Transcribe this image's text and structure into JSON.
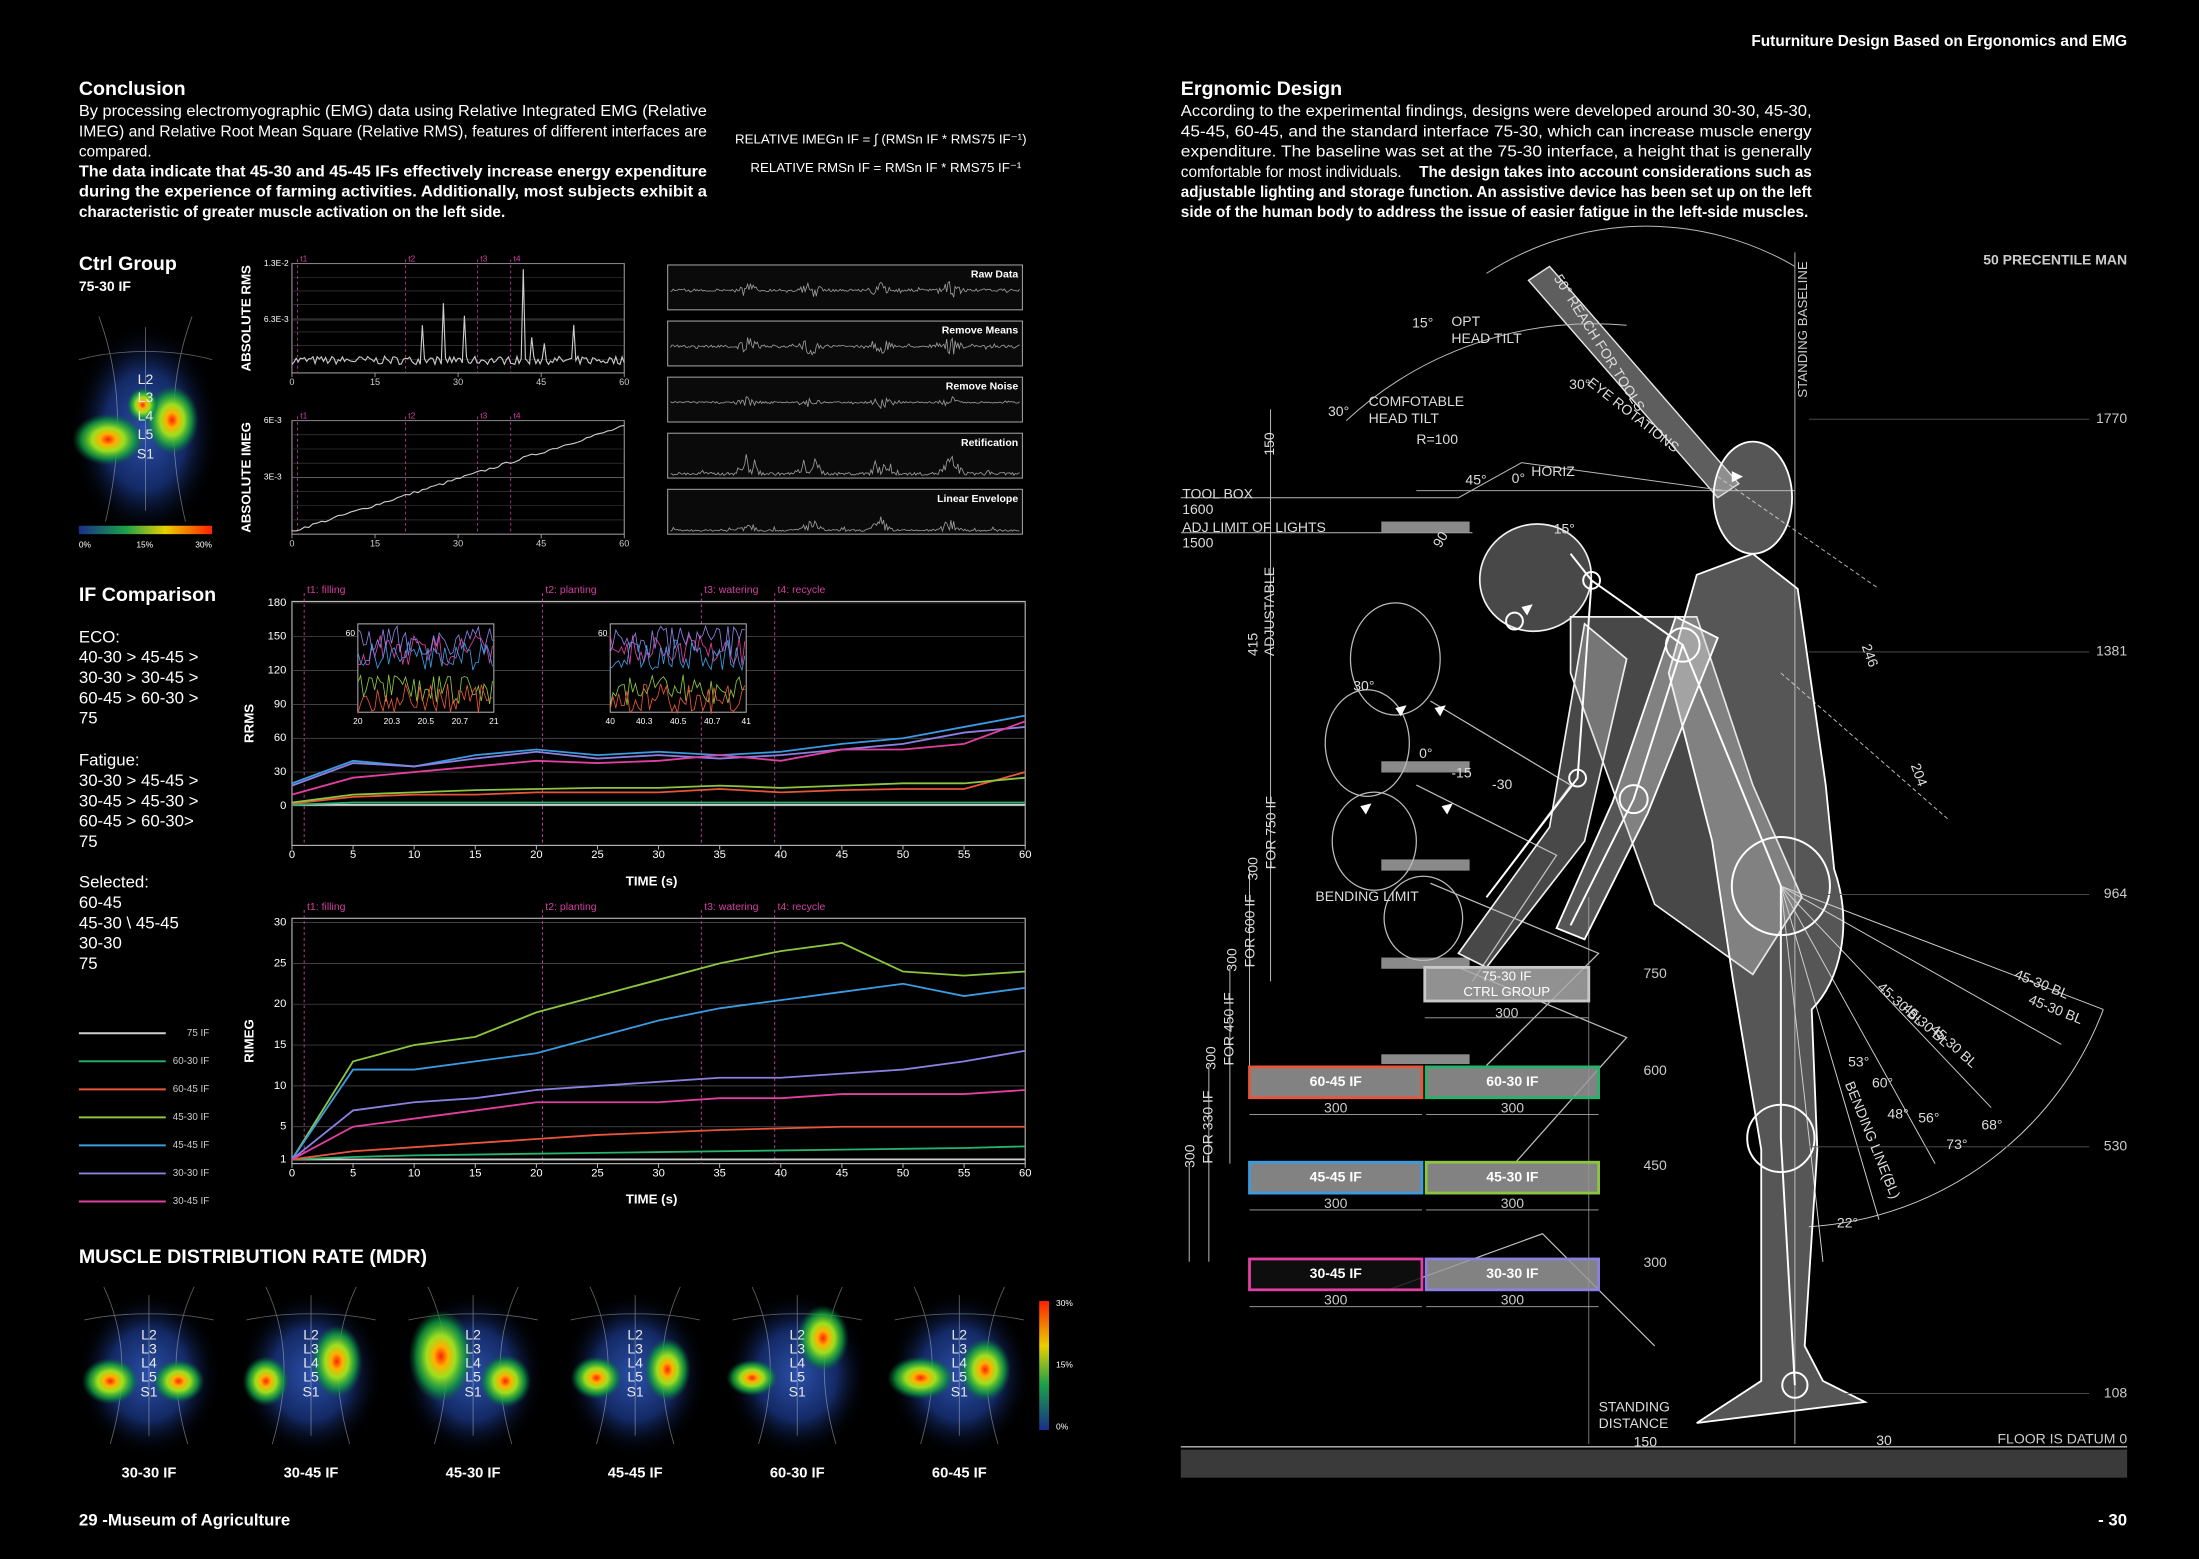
{
  "header": {
    "title": "Futurniture Design Based on Ergonomics and EMG"
  },
  "conclusion": {
    "heading": "Conclusion",
    "body": [
      "By processing electromyographic (EMG) data using Relative Integrated EMG (Relative",
      "IMEG) and Relative Root Mean Square (Relative RMS),  features of different interfaces are",
      "compared."
    ],
    "emphasis": [
      "The data indicate that 45-30 and 45-45 IFs effectively increase energy expenditure",
      "during the experience of farming activities. Additionally, most subjects exhibit a",
      "characteristic of greater muscle activation on the left side."
    ]
  },
  "formula": {
    "imeg": "RELATIVE IMEGn IF = ∫ (RMSn IF * RMS75 IF⁻¹)",
    "rms": "RELATIVE RMSn IF = RMSn IF * RMS75 IF⁻¹"
  },
  "ctrl_group": {
    "heading": "Ctrl Group",
    "subheading": "75-30 IF",
    "spine_labels": [
      "L2",
      "L3",
      "L4",
      "L5",
      "S1"
    ],
    "scale": [
      "0%",
      "15%",
      "30%"
    ],
    "rms_chart": {
      "ylabel": "ABSOLUTE RMS",
      "ylim": [
        0,
        0.013
      ],
      "yticks": [
        {
          "value": 0.013,
          "label": "1.3E-2"
        },
        {
          "value": 0.0063,
          "label": "6.3E-3"
        }
      ],
      "xlim": [
        0,
        60
      ],
      "xticks": [
        0,
        15,
        30,
        45,
        60
      ],
      "phases": [
        "t1",
        "t2",
        "t3",
        "t4"
      ]
    },
    "imeg_chart": {
      "ylabel": "ABSOLUTE IMEG",
      "ylim": [
        0,
        0.006
      ],
      "yticks": [
        {
          "value": 0.006,
          "label": "6E-3"
        },
        {
          "value": 0.003,
          "label": "3E-3"
        }
      ],
      "xlim": [
        0,
        60
      ],
      "xticks": [
        0,
        15,
        30,
        45,
        60
      ],
      "phases": [
        "t1",
        "t2",
        "t3",
        "t4"
      ]
    }
  },
  "signal_steps": [
    "Raw Data",
    "Remove Means",
    "Remove Noise",
    "Retification",
    "Linear Envelope"
  ],
  "if_comparison": {
    "heading": "IF Comparison",
    "groups": [
      {
        "title": "ECO:",
        "lines": [
          "40-30 > 45-45 >",
          "30-30 > 30-45 >",
          "60-45 > 60-30 >",
          "75"
        ]
      },
      {
        "title": "Fatigue:",
        "lines": [
          "30-30 > 45-45 >",
          "30-45 > 45-30 >",
          "60-45 > 60-30>",
          "75"
        ]
      },
      {
        "title": "Selected:",
        "lines": [
          "60-45",
          "45-30 \\ 45-45",
          "30-30",
          "75"
        ]
      }
    ]
  },
  "rrms_chart": {
    "type": "line",
    "ylabel": "RRMS",
    "xlabel": "TIME (s)",
    "phases": [
      "t1: filling",
      "t2: planting",
      "t3: watering",
      "t4: recycle"
    ],
    "x": [
      0,
      5,
      10,
      15,
      20,
      25,
      30,
      35,
      40,
      45,
      50,
      55,
      60
    ],
    "xlim": [
      0,
      60
    ],
    "xticks": [
      0,
      5,
      10,
      15,
      20,
      25,
      30,
      35,
      40,
      45,
      50,
      55,
      60
    ],
    "ylim": [
      -35,
      180
    ],
    "yticks": [
      0,
      30,
      60,
      90,
      120,
      150,
      180
    ],
    "insets": [
      {
        "xticks": [
          20,
          20.3,
          20.5,
          20.7,
          21
        ],
        "ytick": 60
      },
      {
        "xticks": [
          40,
          40.3,
          40.5,
          40.7,
          41
        ],
        "ytick": 60
      }
    ],
    "series": [
      {
        "name": "75 IF",
        "color": "#d0d0d0",
        "values": [
          1,
          1,
          1,
          1,
          1,
          1,
          1,
          1,
          1,
          1,
          1,
          1,
          1
        ]
      },
      {
        "name": "60-30 IF",
        "color": "#27b36b",
        "values": [
          1,
          3,
          3,
          3,
          3,
          3,
          3,
          3,
          3,
          3,
          3,
          3,
          3
        ]
      },
      {
        "name": "60-45 IF",
        "color": "#e8553a",
        "values": [
          2,
          8,
          10,
          10,
          12,
          12,
          12,
          15,
          12,
          14,
          15,
          15,
          30
        ]
      },
      {
        "name": "45-30 IF",
        "color": "#8cc63f",
        "values": [
          3,
          10,
          12,
          14,
          15,
          16,
          16,
          18,
          16,
          18,
          20,
          20,
          25
        ]
      },
      {
        "name": "45-45 IF",
        "color": "#3b9be0",
        "values": [
          20,
          40,
          35,
          45,
          50,
          45,
          48,
          45,
          48,
          55,
          60,
          70,
          80
        ]
      },
      {
        "name": "30-30 IF",
        "color": "#8b80e0",
        "values": [
          18,
          38,
          35,
          42,
          48,
          42,
          45,
          42,
          45,
          50,
          55,
          65,
          70
        ]
      },
      {
        "name": "30-45 IF",
        "color": "#e040a0",
        "values": [
          10,
          25,
          30,
          35,
          40,
          38,
          40,
          45,
          40,
          50,
          50,
          55,
          75
        ]
      }
    ]
  },
  "rimeg_chart": {
    "type": "line",
    "ylabel": "RIMEG",
    "xlabel": "TIME (s)",
    "phases": [
      "t1: filling",
      "t2: planting",
      "t3: watering",
      "t4: recycle"
    ],
    "x": [
      0,
      5,
      10,
      15,
      20,
      25,
      30,
      35,
      40,
      45,
      50,
      55,
      60
    ],
    "xlim": [
      0,
      60
    ],
    "xticks": [
      0,
      5,
      10,
      15,
      20,
      25,
      30,
      35,
      40,
      45,
      50,
      55,
      60
    ],
    "ylim": [
      1,
      30
    ],
    "yticks": [
      1,
      5,
      10,
      15,
      20,
      25,
      30
    ],
    "series": [
      {
        "name": "75 IF",
        "color": "#d0d0d0",
        "values": [
          1,
          1,
          1,
          1,
          1,
          1,
          1,
          1,
          1,
          1,
          1,
          1,
          1
        ]
      },
      {
        "name": "60-30 IF",
        "color": "#27b36b",
        "values": [
          1,
          1.3,
          1.5,
          1.6,
          1.7,
          1.8,
          1.9,
          2,
          2.1,
          2.2,
          2.3,
          2.4,
          2.6
        ]
      },
      {
        "name": "60-45 IF",
        "color": "#e8553a",
        "values": [
          1,
          2,
          2.5,
          3,
          3.5,
          4,
          4.3,
          4.6,
          4.8,
          5,
          5,
          5,
          5
        ]
      },
      {
        "name": "45-30 IF",
        "color": "#8cc63f",
        "values": [
          1,
          13,
          15,
          16,
          19,
          21,
          23,
          25,
          26.5,
          27.5,
          24,
          23.5,
          24
        ]
      },
      {
        "name": "45-45 IF",
        "color": "#3b9be0",
        "values": [
          1,
          12,
          12,
          13,
          14,
          16,
          18,
          19.5,
          20.5,
          21.5,
          22.5,
          21,
          22
        ]
      },
      {
        "name": "30-30 IF",
        "color": "#8b80e0",
        "values": [
          1,
          7,
          8,
          8.5,
          9.5,
          10,
          10.5,
          11,
          11,
          11.5,
          12,
          13,
          14.3
        ]
      },
      {
        "name": "30-45 IF",
        "color": "#e040a0",
        "values": [
          1,
          5,
          6,
          7,
          8,
          8,
          8,
          8.5,
          8.5,
          9,
          9,
          9,
          9.5
        ]
      }
    ]
  },
  "mdr": {
    "heading": "MUSCLE DISTRIBUTION RATE (MDR)",
    "items": [
      "30-30 IF",
      "30-45 IF",
      "45-30 IF",
      "45-45 IF",
      "60-30 IF",
      "60-45 IF"
    ],
    "scale": [
      "30%",
      "15%",
      "0%"
    ]
  },
  "footer": {
    "left": "29 -Museum of Agriculture",
    "right": "- 30"
  },
  "ergonomic_design": {
    "heading": "Ergnomic Design",
    "body": [
      "According to the experimental findings, designs were developed around 30-30, 45-30,",
      "45-45, 60-45, and the standard interface 75-30, which can increase muscle energy",
      "expenditure. The baseline was set at the 75-30 interface, a height that is generally",
      "comfortable for most individuals."
    ],
    "emphasis": [
      "The design takes into account considerations such as",
      "adjustable lighting and storage function. An assistive device has been set up on the left",
      "side of the human body to address the issue of easier fatigue in the left-side muscles."
    ]
  },
  "diagram": {
    "title": "50 PRECENTILE MAN",
    "baseline_label": "STANDING BASELINE",
    "heights": [
      1770,
      1381,
      964,
      530,
      108
    ],
    "floor_label": "FLOOR IS DATUM 0",
    "levels": [
      750,
      600,
      450,
      300
    ],
    "interfaces": [
      {
        "name": "75-30 IF",
        "note": "CTRL GROUP",
        "width": 300
      },
      {
        "name": "60-45 IF",
        "width": 300
      },
      {
        "name": "60-30 IF",
        "width": 300
      },
      {
        "name": "45-45 IF",
        "width": 300
      },
      {
        "name": "45-30 IF",
        "width": 300
      },
      {
        "name": "30-45 IF",
        "width": 300
      },
      {
        "name": "30-30 IF",
        "width": 300
      }
    ],
    "annotations": [
      "TOOL BOX",
      "1600",
      "ADJ LIMIT OF LIGHTS",
      "1500",
      "150",
      "ADJUSTABLE",
      "415",
      "FOR 750 IF",
      "300",
      "FOR 600 IF",
      "300",
      "FOR 450 IF",
      "300",
      "FOR 330 IF",
      "300",
      "15°",
      "OPT",
      "HEAD TILT",
      "30°",
      "COMFOTABLE",
      "HEAD TILT",
      "R=100",
      "45°",
      "0°",
      "HORIZ",
      "50° REACH FOR TOOLS",
      "30°",
      "EYE ROTATIONS",
      "90",
      "15°",
      "30°",
      "0°",
      "-15",
      "-30",
      "BENDING LIMIT",
      "246",
      "204",
      "45-30 BL",
      "45-30 BL",
      "45-30 BL",
      "45-30 BL",
      "45-30 BL",
      "BENDING LINE(BL)",
      "53°",
      "60°",
      "48°",
      "56°",
      "73°",
      "68°",
      "22°",
      "STANDING",
      "DISTANCE",
      "150",
      "30"
    ]
  }
}
